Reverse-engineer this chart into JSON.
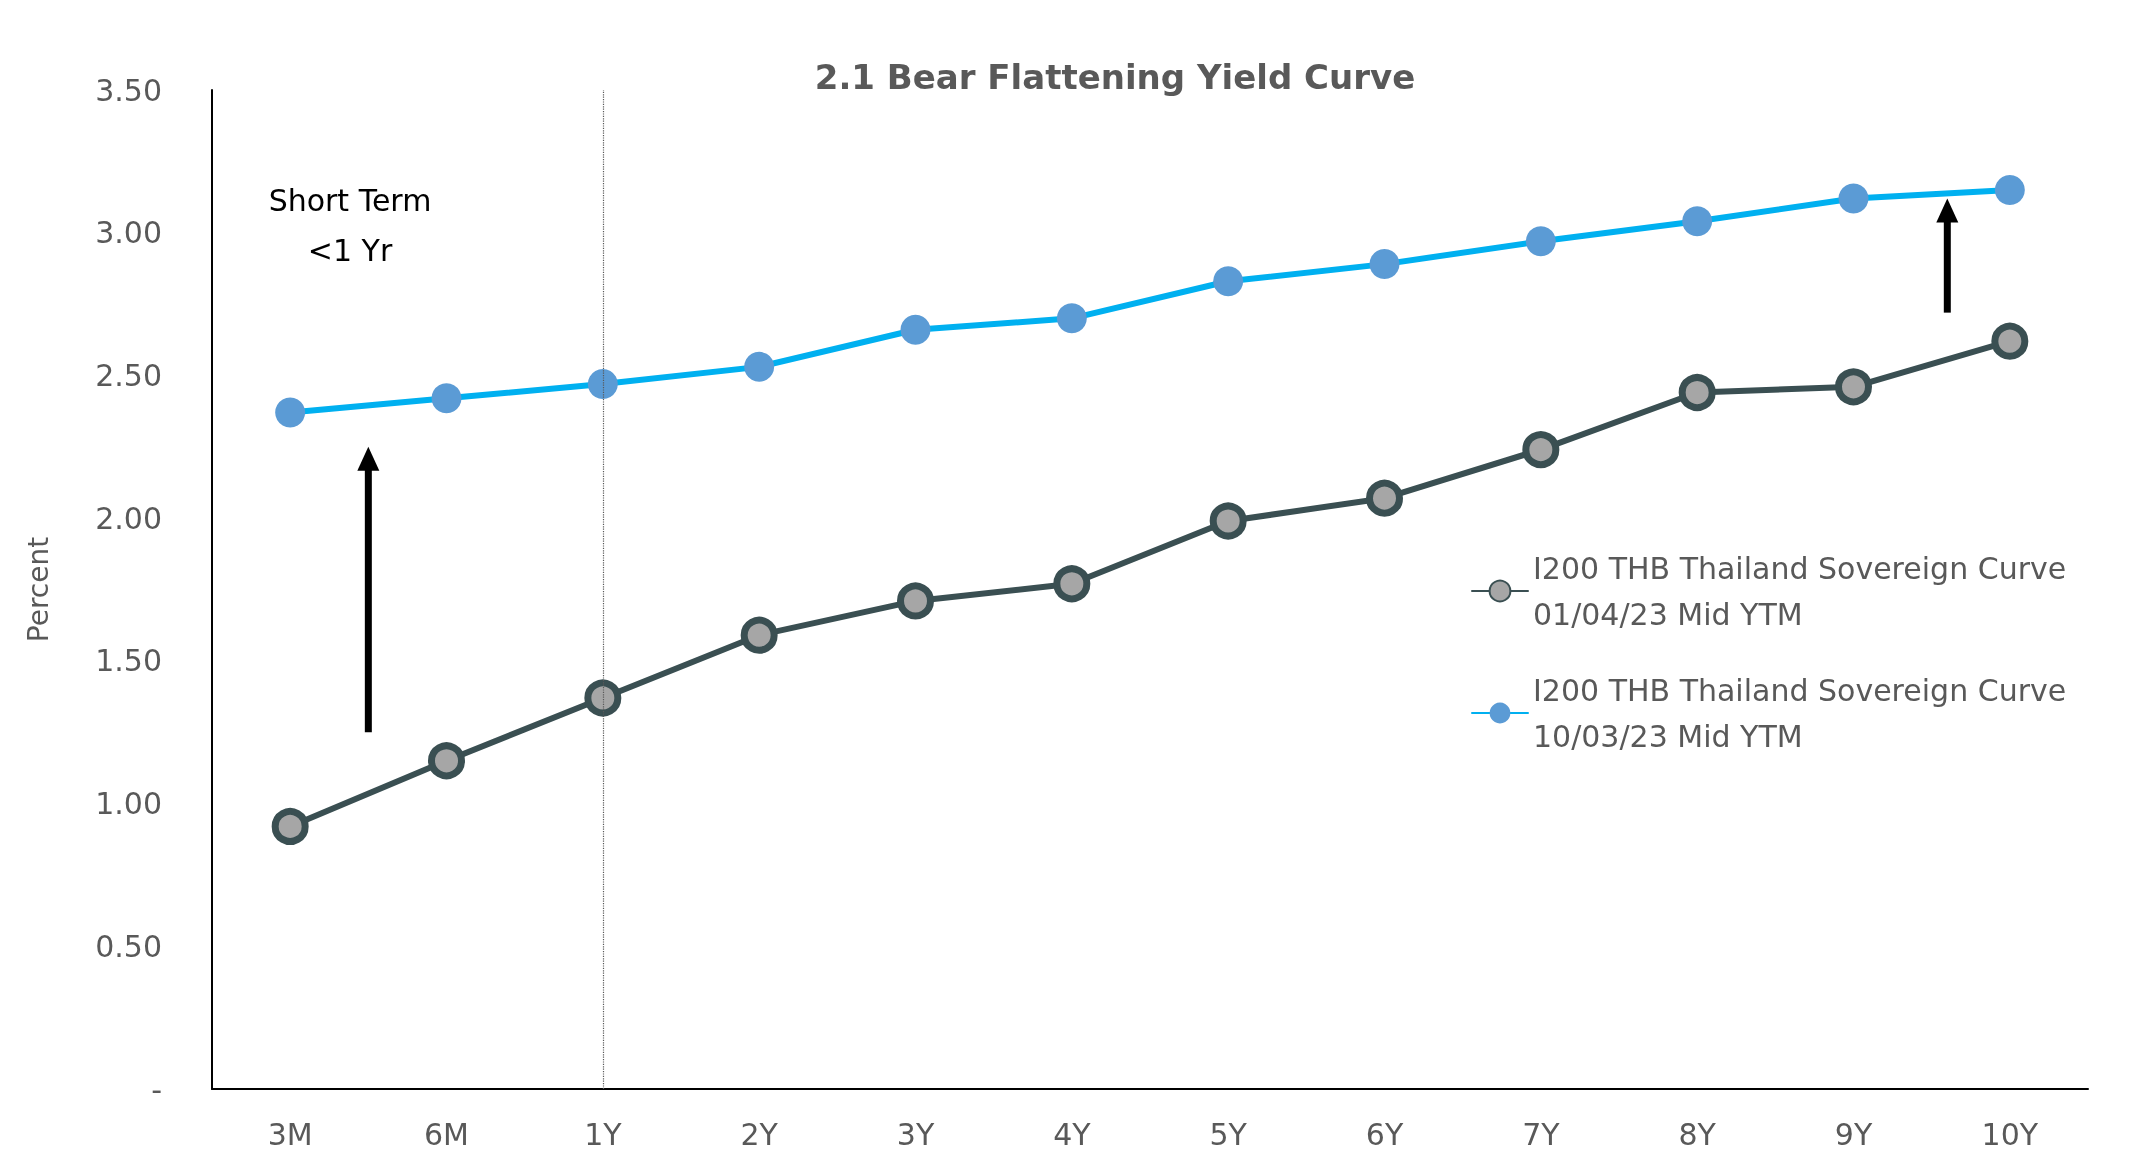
{
  "chart_data": {
    "type": "line",
    "title": "2.1 Bear Flattening Yield Curve",
    "ylabel": "Percent",
    "categories": [
      "3M",
      "6M",
      "1Y",
      "2Y",
      "3Y",
      "4Y",
      "5Y",
      "6Y",
      "7Y",
      "8Y",
      "9Y",
      "10Y"
    ],
    "series": [
      {
        "name": "I200 THB Thailand Sovereign Curve 01/04/23 Mid YTM",
        "color": "#3a4f52",
        "values": [
          0.92,
          1.15,
          1.37,
          1.59,
          1.71,
          1.77,
          1.99,
          2.07,
          2.24,
          2.44,
          2.46,
          2.62
        ]
      },
      {
        "name": "I200 THB Thailand Sovereign Curve 10/03/23 Mid YTM",
        "color": "#00b0f0",
        "values": [
          2.37,
          2.42,
          2.47,
          2.53,
          2.66,
          2.7,
          2.83,
          2.89,
          2.97,
          3.04,
          3.12,
          3.15
        ]
      }
    ],
    "ylim": [
      0,
      3.5
    ],
    "yticks": [
      {
        "value": 0,
        "label": "-"
      },
      {
        "value": 0.5,
        "label": "0.50"
      },
      {
        "value": 1,
        "label": "1.00"
      },
      {
        "value": 1.5,
        "label": "1.50"
      },
      {
        "value": 2,
        "label": "2.00"
      },
      {
        "value": 2.5,
        "label": "2.50"
      },
      {
        "value": 3,
        "label": "3.00"
      },
      {
        "value": 3.5,
        "label": "3.50"
      }
    ],
    "ref_lines": [
      {
        "axis": "x",
        "value": "1Y",
        "color": "#595959",
        "line_style": "dotted"
      }
    ],
    "annotations": [
      "Short Term\n<1 Yr"
    ],
    "grid": false,
    "legend": "right",
    "marker": "circle",
    "line_style": "solid"
  }
}
